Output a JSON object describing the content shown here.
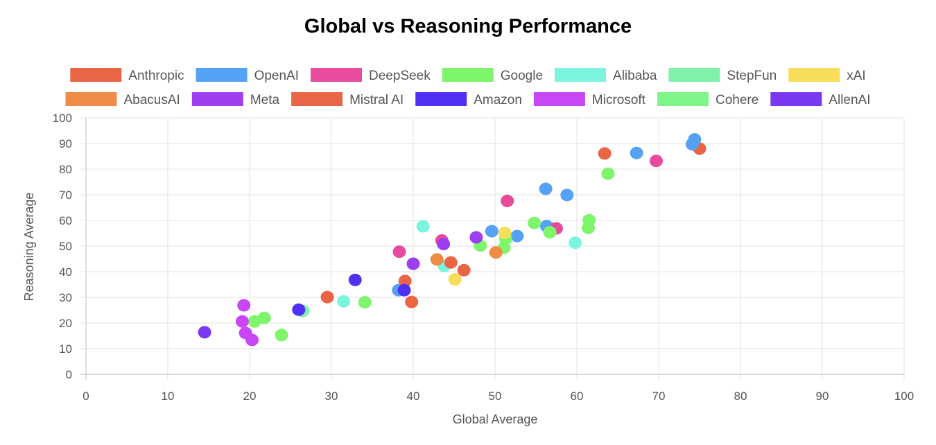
{
  "chart_data": {
    "type": "scatter",
    "title": "Global vs Reasoning Performance",
    "xlabel": "Global Average",
    "ylabel": "Reasoning Average",
    "xlim": [
      0,
      100
    ],
    "ylim": [
      0,
      100
    ],
    "xticks": [
      0,
      10,
      20,
      30,
      40,
      50,
      60,
      70,
      80,
      90,
      100
    ],
    "yticks": [
      0,
      10,
      20,
      30,
      40,
      50,
      60,
      70,
      80,
      90,
      100
    ],
    "grid": true,
    "legend_position": "top",
    "series": [
      {
        "name": "Anthropic",
        "color": "#ea6446",
        "points": [
          [
            63.4,
            86.1
          ],
          [
            75.0,
            88.0
          ],
          [
            57.0,
            56.8
          ]
        ]
      },
      {
        "name": "OpenAI",
        "color": "#55a1f5",
        "points": [
          [
            74.4,
            91.6
          ],
          [
            74.1,
            89.7
          ],
          [
            67.3,
            86.3
          ],
          [
            56.2,
            72.3
          ],
          [
            58.8,
            69.9
          ],
          [
            56.3,
            57.8
          ],
          [
            49.6,
            55.8
          ],
          [
            52.7,
            53.9
          ],
          [
            38.2,
            32.8
          ]
        ]
      },
      {
        "name": "DeepSeek",
        "color": "#e84b9b",
        "points": [
          [
            69.7,
            83.2
          ],
          [
            51.5,
            67.6
          ],
          [
            43.5,
            52.2
          ],
          [
            38.3,
            47.8
          ],
          [
            57.5,
            56.9
          ]
        ]
      },
      {
        "name": "Google",
        "color": "#7ef56a",
        "points": [
          [
            63.8,
            78.2
          ],
          [
            61.5,
            60.1
          ],
          [
            61.4,
            57.1
          ],
          [
            54.8,
            59.0
          ],
          [
            56.7,
            55.4
          ],
          [
            48.2,
            50.2
          ],
          [
            51.1,
            49.3
          ],
          [
            51.3,
            52.8
          ],
          [
            34.1,
            28.1
          ],
          [
            23.9,
            15.3
          ],
          [
            20.6,
            20.6
          ],
          [
            21.8,
            22.0
          ]
        ]
      },
      {
        "name": "Alibaba",
        "color": "#7bf5de",
        "points": [
          [
            41.2,
            57.7
          ],
          [
            59.8,
            51.3
          ],
          [
            43.8,
            42.2
          ],
          [
            31.5,
            28.4
          ]
        ]
      },
      {
        "name": "StepFun",
        "color": "#7ef2a8",
        "points": [
          [
            26.5,
            24.7
          ]
        ]
      },
      {
        "name": "xAI",
        "color": "#f7de5a",
        "points": [
          [
            51.2,
            55.1
          ],
          [
            45.1,
            37.0
          ]
        ]
      },
      {
        "name": "AbacusAI",
        "color": "#f08b46",
        "points": [
          [
            42.9,
            44.8
          ],
          [
            50.1,
            47.5
          ]
        ]
      },
      {
        "name": "Meta",
        "color": "#9d3ef0",
        "points": [
          [
            47.7,
            53.4
          ],
          [
            43.7,
            50.8
          ],
          [
            40.0,
            43.1
          ]
        ]
      },
      {
        "name": "Mistral AI",
        "color": "#ea6446",
        "points": [
          [
            44.6,
            43.6
          ],
          [
            46.2,
            40.6
          ],
          [
            39.0,
            36.4
          ],
          [
            39.8,
            28.2
          ],
          [
            29.5,
            30.1
          ]
        ]
      },
      {
        "name": "Amazon",
        "color": "#4e31f3",
        "points": [
          [
            32.9,
            36.8
          ],
          [
            38.9,
            32.8
          ],
          [
            26.0,
            25.2
          ]
        ]
      },
      {
        "name": "Microsoft",
        "color": "#c746f5",
        "points": [
          [
            19.3,
            26.9
          ],
          [
            19.1,
            20.6
          ],
          [
            19.5,
            16.1
          ],
          [
            20.3,
            13.4
          ]
        ]
      },
      {
        "name": "Cohere",
        "color": "#7ef58a",
        "points": []
      },
      {
        "name": "AllenAI",
        "color": "#7a38f0",
        "points": [
          [
            14.5,
            16.4
          ]
        ]
      }
    ]
  }
}
